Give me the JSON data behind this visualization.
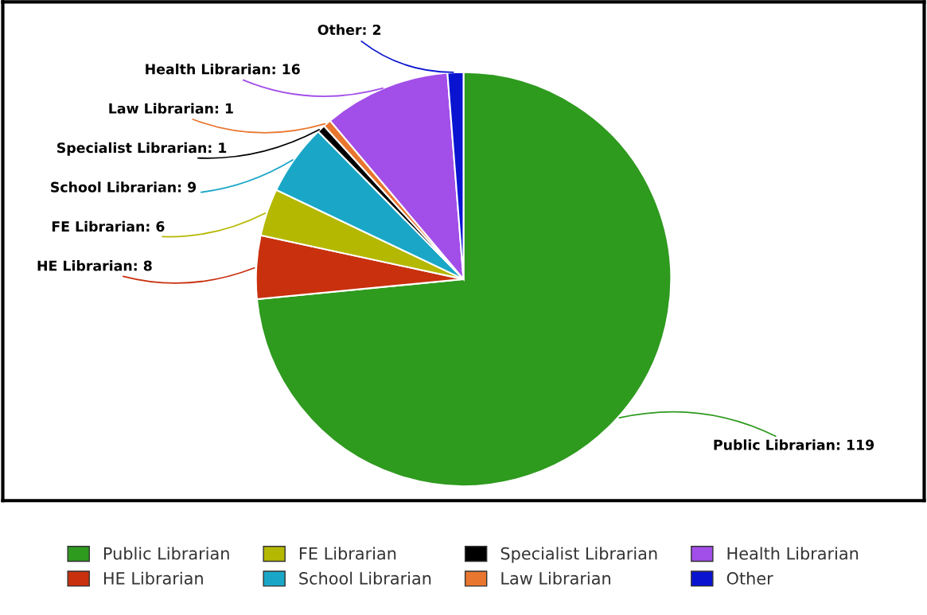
{
  "chart_data": {
    "type": "pie",
    "categories": [
      "Public Librarian",
      "HE Librarian",
      "FE Librarian",
      "School Librarian",
      "Specialist Librarian",
      "Law Librarian",
      "Health Librarian",
      "Other"
    ],
    "values": [
      119,
      8,
      6,
      9,
      1,
      1,
      16,
      2
    ],
    "colors": [
      "#2e9a1e",
      "#c8300e",
      "#b5b800",
      "#1aa7c7",
      "#000000",
      "#e8762e",
      "#a24ee8",
      "#0a14d0"
    ],
    "value_labels": [
      "Public Librarian: 119",
      "HE Librarian: 8",
      "FE Librarian: 6",
      "School Librarian: 9",
      "Specialist Librarian: 1",
      "Law Librarian: 1",
      "Health Librarian: 16",
      "Other: 2"
    ],
    "legend": "bottom"
  }
}
